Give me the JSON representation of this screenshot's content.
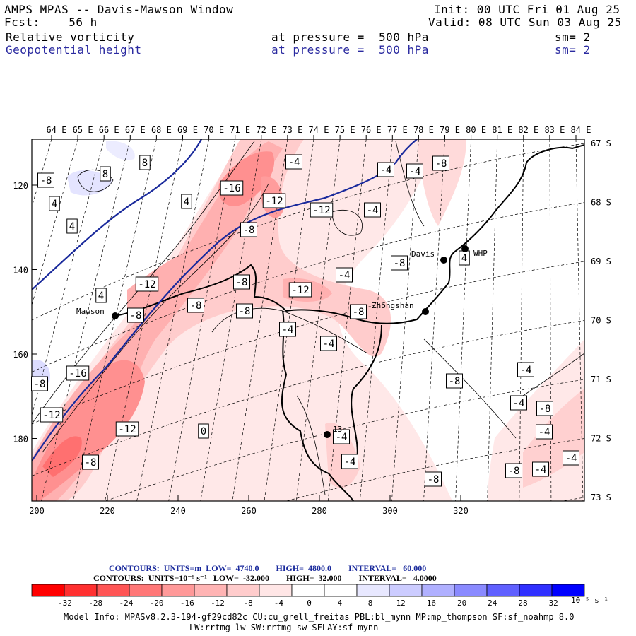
{
  "header": {
    "title": "AMPS MPAS -- Davis-Mawson Window",
    "forecast": "Fcst:    56 h",
    "init": "Init: 00 UTC Fri 01 Aug 25",
    "valid": "Valid: 08 UTC Sun 03 Aug 25",
    "field1": {
      "name": "Relative vorticity",
      "pressure": "at pressure =  500 hPa",
      "sm": "sm= 2"
    },
    "field2": {
      "name": "Geopotential height",
      "pressure": "at pressure =  500 hPa",
      "sm": "sm= 2"
    }
  },
  "axes": {
    "top_lon": [
      "64 E",
      "65 E",
      "66 E",
      "67 E",
      "68 E",
      "69 E",
      "70 E",
      "71 E",
      "72 E",
      "73 E",
      "74 E",
      "75 E",
      "76 E",
      "77 E",
      "78 E",
      "79 E",
      "80 E",
      "81 E",
      "82 E",
      "83 E",
      "84 E"
    ],
    "right_lat": [
      "67 S",
      "68 S",
      "69 S",
      "70 S",
      "71 S",
      "72 S",
      "73 S"
    ],
    "left_grid": [
      "120",
      "140",
      "160",
      "180"
    ],
    "bottom_grid": [
      "200",
      "220",
      "240",
      "260",
      "280",
      "300",
      "320"
    ]
  },
  "stations": [
    {
      "name": "Mawson"
    },
    {
      "name": "Zhongshan"
    },
    {
      "name": "Davis"
    },
    {
      "name": "WHP"
    },
    {
      "name": "13"
    }
  ],
  "contour_labels": [
    "-8",
    "8",
    "8",
    "-16",
    "-12",
    "4",
    "-4",
    "-4",
    "-8",
    "4",
    "4",
    "-8",
    "-12",
    "-8",
    "-4",
    "-8",
    "-8",
    "4",
    "-8",
    "-8",
    "-12",
    "-8",
    "-4",
    "-4",
    "-12",
    "4",
    "-4",
    "-16",
    "-4",
    "-8",
    "-12",
    "-12",
    "-8",
    "0",
    "-4",
    "-4",
    "-4",
    "-4",
    "-8",
    "-4",
    "-8",
    "-4",
    "-8",
    "-4",
    "-8"
  ],
  "colors": {
    "height_contour": "#1a2a9c",
    "positive_scale": "#0000ff",
    "negative_scale": "#ff0000"
  },
  "legend": {
    "contours1": "CONTOURS:  UNITS=m  LOW=  4740.0        HIGH=  4800.0        INTERVAL=   60.000",
    "contours2": "CONTOURS:  UNITS=10⁻⁵ s⁻¹   LOW=  -32.000        HIGH=  32.000        INTERVAL=   4.0000",
    "ticks": [
      "-32",
      "-28",
      "-24",
      "-20",
      "-16",
      "-12",
      "-8",
      "-4",
      "0",
      "4",
      "8",
      "12",
      "16",
      "20",
      "24",
      "28",
      "32"
    ],
    "unit": "10⁻⁵ s⁻¹",
    "colors": [
      "#ff0000",
      "#ff3030",
      "#ff5555",
      "#ff7777",
      "#ff9999",
      "#ffb4b4",
      "#ffcccc",
      "#ffe6e6",
      "#ffffff",
      "#ffffff",
      "#e8e8ff",
      "#ccccff",
      "#b0b0ff",
      "#8a8aff",
      "#6060ff",
      "#3030ff",
      "#0000ff"
    ]
  },
  "model_info": {
    "line1": "Model Info: MPASv8.2.3-194-gf29cd82c CU:cu_grell_freitas PBL:bl_mynn MP:mp_thompson SF:sf_noahmp 8.0",
    "line2": "LW:rrtmg_lw SW:rrtmg_sw SFLAY:sf_mynn"
  }
}
